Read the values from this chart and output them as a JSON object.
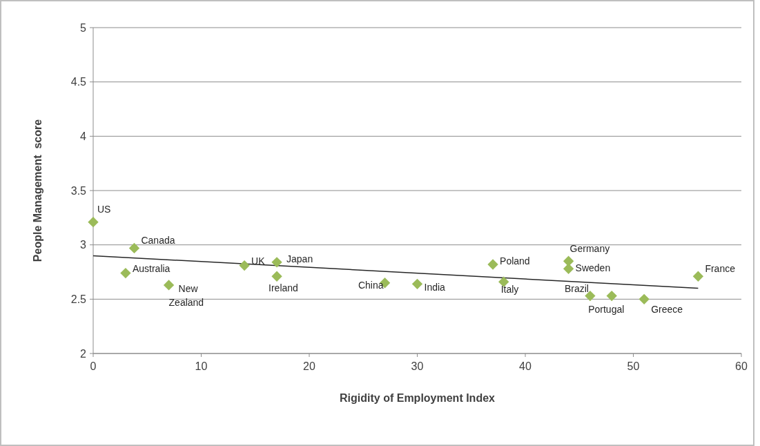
{
  "chart_data": {
    "type": "scatter",
    "xlabel": "Rigidity of Employment Index",
    "ylabel": "People Management  score",
    "xlim": [
      0,
      60
    ],
    "ylim": [
      2,
      5
    ],
    "xticks": [
      0,
      10,
      20,
      30,
      40,
      50,
      60
    ],
    "yticks": [
      2,
      2.5,
      3,
      3.5,
      4,
      4.5,
      5
    ],
    "grid": "y",
    "marker": "diamond",
    "series": [
      {
        "color": "#9bbb59",
        "x": [
          0,
          3.8,
          3,
          7,
          14,
          17,
          17,
          27,
          30,
          37,
          38,
          44,
          44,
          46,
          48,
          51,
          56
        ],
        "values": [
          3.21,
          2.97,
          2.74,
          2.63,
          2.81,
          2.84,
          2.71,
          2.65,
          2.64,
          2.82,
          2.66,
          2.85,
          2.78,
          2.53,
          2.53,
          2.5,
          2.71
        ]
      },
      {
        "type": "line",
        "color": "#262626",
        "x": [
          0,
          56
        ],
        "values": [
          2.9,
          2.6
        ],
        "marker": "none"
      }
    ],
    "annotations": [
      {
        "text": "US",
        "x": 0,
        "y": 3.21
      },
      {
        "text": "Canada",
        "x": 3.8,
        "y": 2.97
      },
      {
        "text": "Australia",
        "x": 3,
        "y": 2.74
      },
      {
        "text": "New Zealand",
        "x": 7,
        "y": 2.63
      },
      {
        "text": "UK",
        "x": 14,
        "y": 2.81
      },
      {
        "text": "Japan",
        "x": 17,
        "y": 2.84
      },
      {
        "text": "Ireland",
        "x": 17,
        "y": 2.71
      },
      {
        "text": "China",
        "x": 27,
        "y": 2.65
      },
      {
        "text": "India",
        "x": 30,
        "y": 2.64
      },
      {
        "text": "Poland",
        "x": 37,
        "y": 2.82
      },
      {
        "text": "Italy",
        "x": 38,
        "y": 2.66
      },
      {
        "text": "Germany",
        "x": 44,
        "y": 2.85
      },
      {
        "text": "Sweden",
        "x": 44,
        "y": 2.78
      },
      {
        "text": "Brazil",
        "x": 46,
        "y": 2.53
      },
      {
        "text": "Portugal",
        "x": 48,
        "y": 2.53
      },
      {
        "text": "Greece",
        "x": 51,
        "y": 2.5
      },
      {
        "text": "France",
        "x": 56,
        "y": 2.71
      }
    ]
  }
}
